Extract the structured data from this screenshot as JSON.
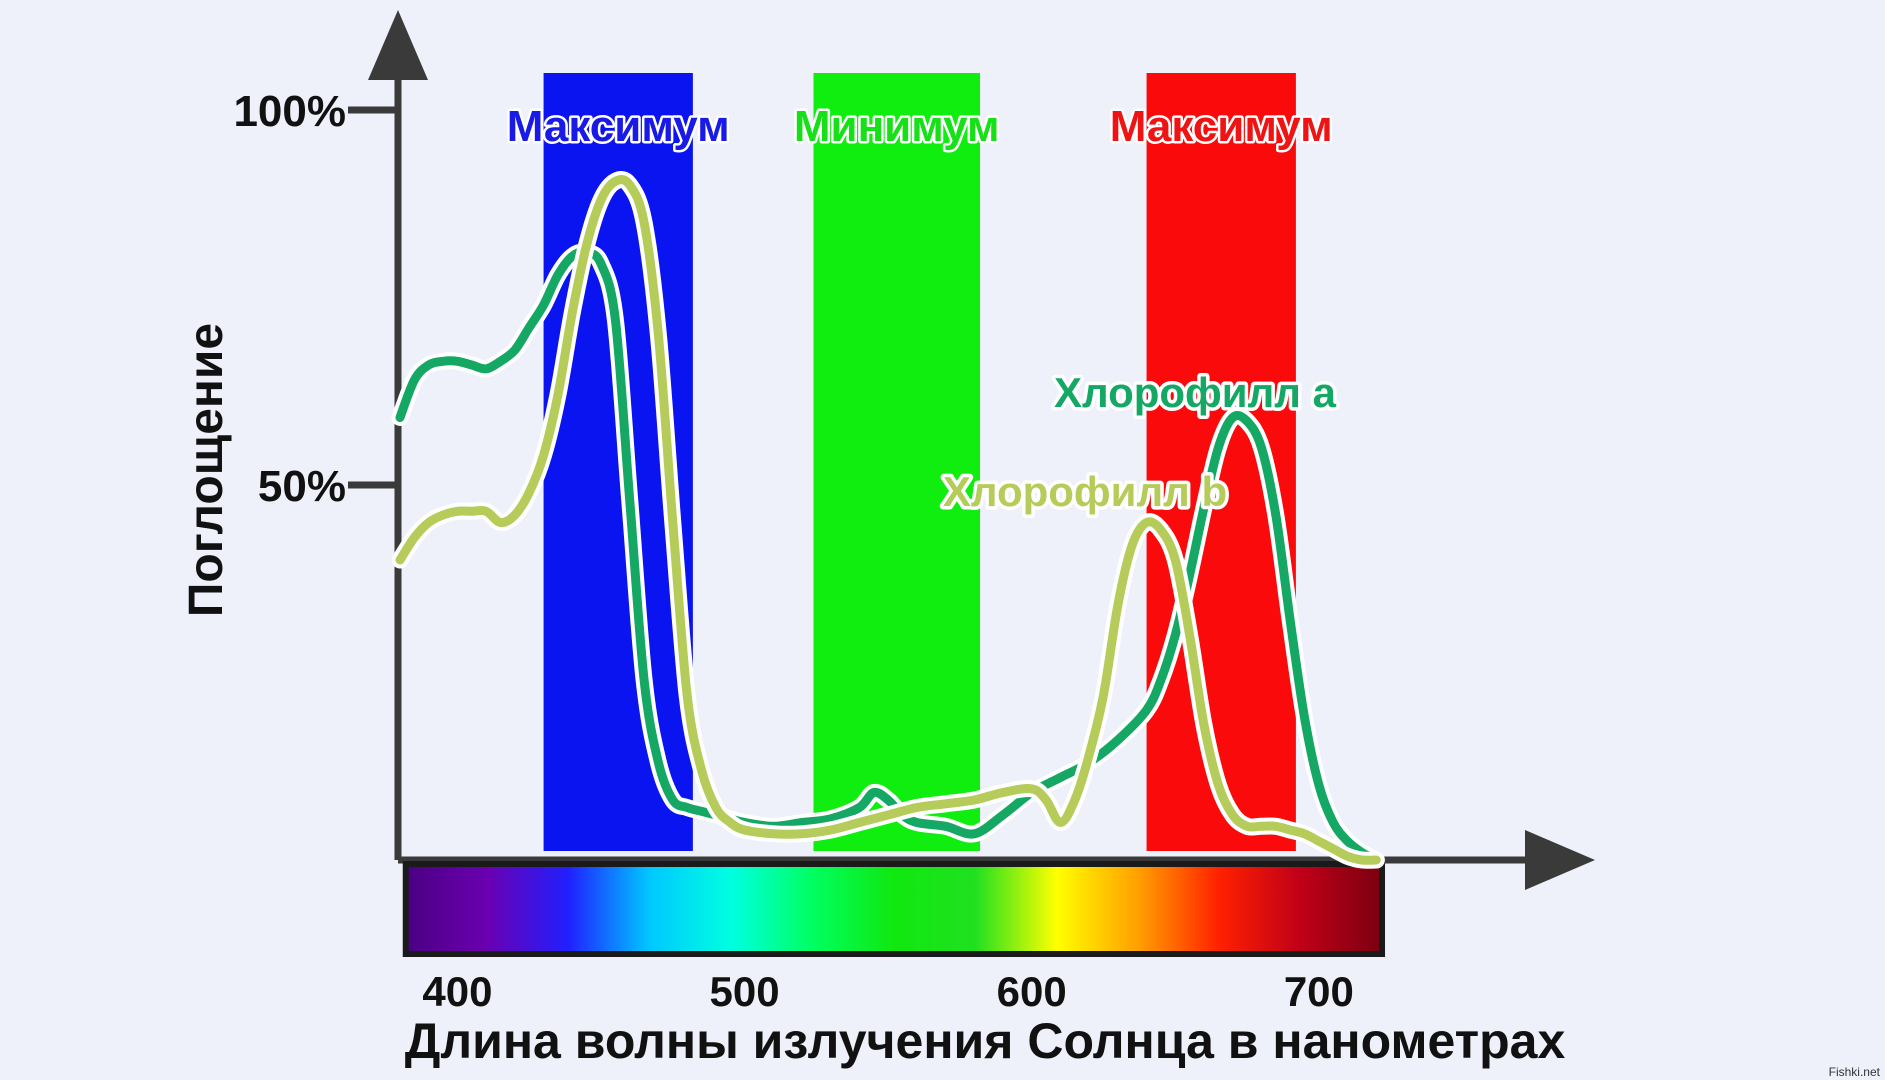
{
  "chart_data": {
    "type": "line",
    "xlabel": "Длина волны излучения Солнца в нанометрах",
    "ylabel": "Поглощение",
    "xlim": [
      380,
      730
    ],
    "ylim": [
      0,
      100
    ],
    "x_ticks": [
      400,
      500,
      600,
      700
    ],
    "x_tick_labels": [
      "400",
      "500",
      "600",
      "700"
    ],
    "y_ticks": [
      50,
      100
    ],
    "y_tick_labels": [
      "50%",
      "100%"
    ],
    "grid": false,
    "bands": [
      {
        "label": "Максимум",
        "from": 430,
        "to": 482,
        "color": "#0a14f0",
        "label_color": "#1a1ae6"
      },
      {
        "label": "Минимум",
        "from": 524,
        "to": 582,
        "color": "#10ee10",
        "label_color": "#18e018"
      },
      {
        "label": "Максимум",
        "from": 640,
        "to": 692,
        "color": "#fa0a0a",
        "label_color": "#ee1414"
      }
    ],
    "spectrum": {
      "from": 382,
      "to": 722,
      "colors": [
        "#4b0082",
        "#6a00b0",
        "#2020ff",
        "#00c8ff",
        "#00ffe0",
        "#00ff60",
        "#10e810",
        "#20e020",
        "#ffff00",
        "#ffa000",
        "#ff2000",
        "#c00018",
        "#7a0010"
      ]
    },
    "series": [
      {
        "name": "Хлорофилл a",
        "color": "#15a865",
        "x": [
          380,
          385,
          390,
          395,
          400,
          405,
          410,
          415,
          420,
          425,
          430,
          435,
          440,
          445,
          450,
          455,
          460,
          465,
          470,
          475,
          480,
          485,
          490,
          495,
          500,
          510,
          520,
          530,
          540,
          545,
          550,
          555,
          560,
          570,
          580,
          590,
          600,
          610,
          620,
          630,
          640,
          645,
          650,
          655,
          660,
          665,
          670,
          675,
          680,
          685,
          690,
          695,
          700,
          705,
          710,
          715,
          720
        ],
        "y": [
          59,
          64,
          66,
          66.5,
          66.5,
          66,
          65.5,
          66.5,
          68,
          71,
          74,
          78,
          80.5,
          81,
          79.5,
          72,
          48,
          24,
          13,
          8,
          7,
          6.5,
          6,
          5.5,
          5,
          4.5,
          5,
          5.5,
          7,
          9,
          8,
          6,
          5,
          4.5,
          3.5,
          6,
          9,
          11,
          13,
          16,
          20,
          24,
          30,
          38,
          47,
          55,
          59,
          58.5,
          55,
          46,
          32,
          19,
          10,
          5,
          2.5,
          1,
          0
        ]
      },
      {
        "name": "Хлорофилл b",
        "color": "#b5cc5a",
        "x": [
          380,
          385,
          390,
          395,
          400,
          405,
          410,
          415,
          420,
          425,
          430,
          435,
          440,
          445,
          450,
          455,
          460,
          465,
          470,
          475,
          480,
          485,
          490,
          495,
          500,
          510,
          520,
          530,
          540,
          550,
          560,
          570,
          580,
          590,
          600,
          605,
          610,
          615,
          620,
          625,
          630,
          635,
          640,
          645,
          650,
          655,
          660,
          665,
          670,
          675,
          680,
          685,
          690,
          695,
          700,
          705,
          710,
          715,
          720
        ],
        "y": [
          40,
          43,
          45,
          46,
          46.5,
          46.5,
          46.5,
          45,
          46,
          49,
          54,
          62,
          73,
          82,
          88,
          90.5,
          90,
          85,
          70,
          45,
          22,
          12,
          7,
          5,
          4,
          3.5,
          3.5,
          4,
          5,
          6,
          7,
          7.5,
          8,
          9,
          9.5,
          8,
          5,
          8,
          14,
          22,
          34,
          42,
          45,
          44,
          40,
          30,
          18,
          10,
          6,
          4.5,
          4.5,
          4.5,
          4,
          3.5,
          2.5,
          1.5,
          0.5,
          0,
          0
        ]
      }
    ],
    "annotations": [
      {
        "text": "Хлорофилл a",
        "series": 0,
        "color": "#15a865"
      },
      {
        "text": "Хлорофилл b",
        "series": 1,
        "color": "#b5cc5a"
      }
    ],
    "watermark": "Fishki.net"
  }
}
